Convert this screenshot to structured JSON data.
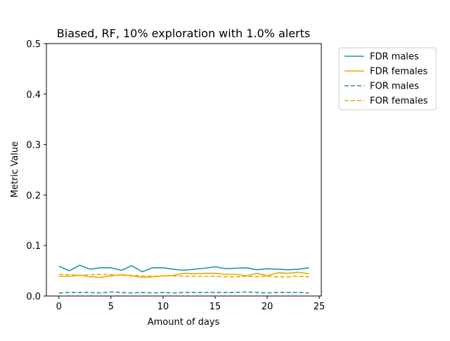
{
  "chart_data": {
    "type": "line",
    "title": "Biased, RF, 10% exploration with 1.0% alerts",
    "xlabel": "Amount of days",
    "ylabel": "Metric Value",
    "xlim": [
      -1.2,
      25.2
    ],
    "ylim": [
      0,
      0.5
    ],
    "xticks": [
      0,
      5,
      10,
      15,
      20,
      25
    ],
    "yticks": [
      0.0,
      0.1,
      0.2,
      0.3,
      0.4,
      0.5
    ],
    "x": [
      0,
      1,
      2,
      3,
      4,
      5,
      6,
      7,
      8,
      9,
      10,
      11,
      12,
      13,
      14,
      15,
      16,
      17,
      18,
      19,
      20,
      21,
      22,
      23,
      24
    ],
    "legend_position": "outside-top-right",
    "grid": false,
    "series": [
      {
        "name": "FDR males",
        "color": "#2196a6",
        "dash": "solid",
        "values": [
          0.059,
          0.05,
          0.061,
          0.053,
          0.056,
          0.056,
          0.051,
          0.06,
          0.048,
          0.056,
          0.056,
          0.053,
          0.051,
          0.053,
          0.055,
          0.058,
          0.054,
          0.055,
          0.056,
          0.052,
          0.054,
          0.053,
          0.052,
          0.053,
          0.056
        ]
      },
      {
        "name": "FDR females",
        "color": "#f0a500",
        "dash": "solid",
        "values": [
          0.039,
          0.039,
          0.041,
          0.038,
          0.037,
          0.04,
          0.042,
          0.04,
          0.037,
          0.038,
          0.04,
          0.041,
          0.045,
          0.044,
          0.045,
          0.045,
          0.043,
          0.043,
          0.04,
          0.045,
          0.04,
          0.046,
          0.045,
          0.047,
          0.044
        ]
      },
      {
        "name": "FOR males",
        "color": "#2196a6",
        "dash": "dashed",
        "values": [
          0.006,
          0.007,
          0.007,
          0.007,
          0.006,
          0.008,
          0.007,
          0.006,
          0.007,
          0.006,
          0.007,
          0.006,
          0.007,
          0.007,
          0.007,
          0.007,
          0.007,
          0.007,
          0.008,
          0.007,
          0.006,
          0.007,
          0.007,
          0.007,
          0.006
        ]
      },
      {
        "name": "FOR females",
        "color": "#f0a500",
        "dash": "dashed",
        "values": [
          0.043,
          0.042,
          0.041,
          0.042,
          0.043,
          0.042,
          0.041,
          0.041,
          0.04,
          0.039,
          0.04,
          0.04,
          0.039,
          0.039,
          0.039,
          0.039,
          0.038,
          0.038,
          0.039,
          0.038,
          0.039,
          0.038,
          0.038,
          0.039,
          0.038
        ]
      }
    ]
  }
}
